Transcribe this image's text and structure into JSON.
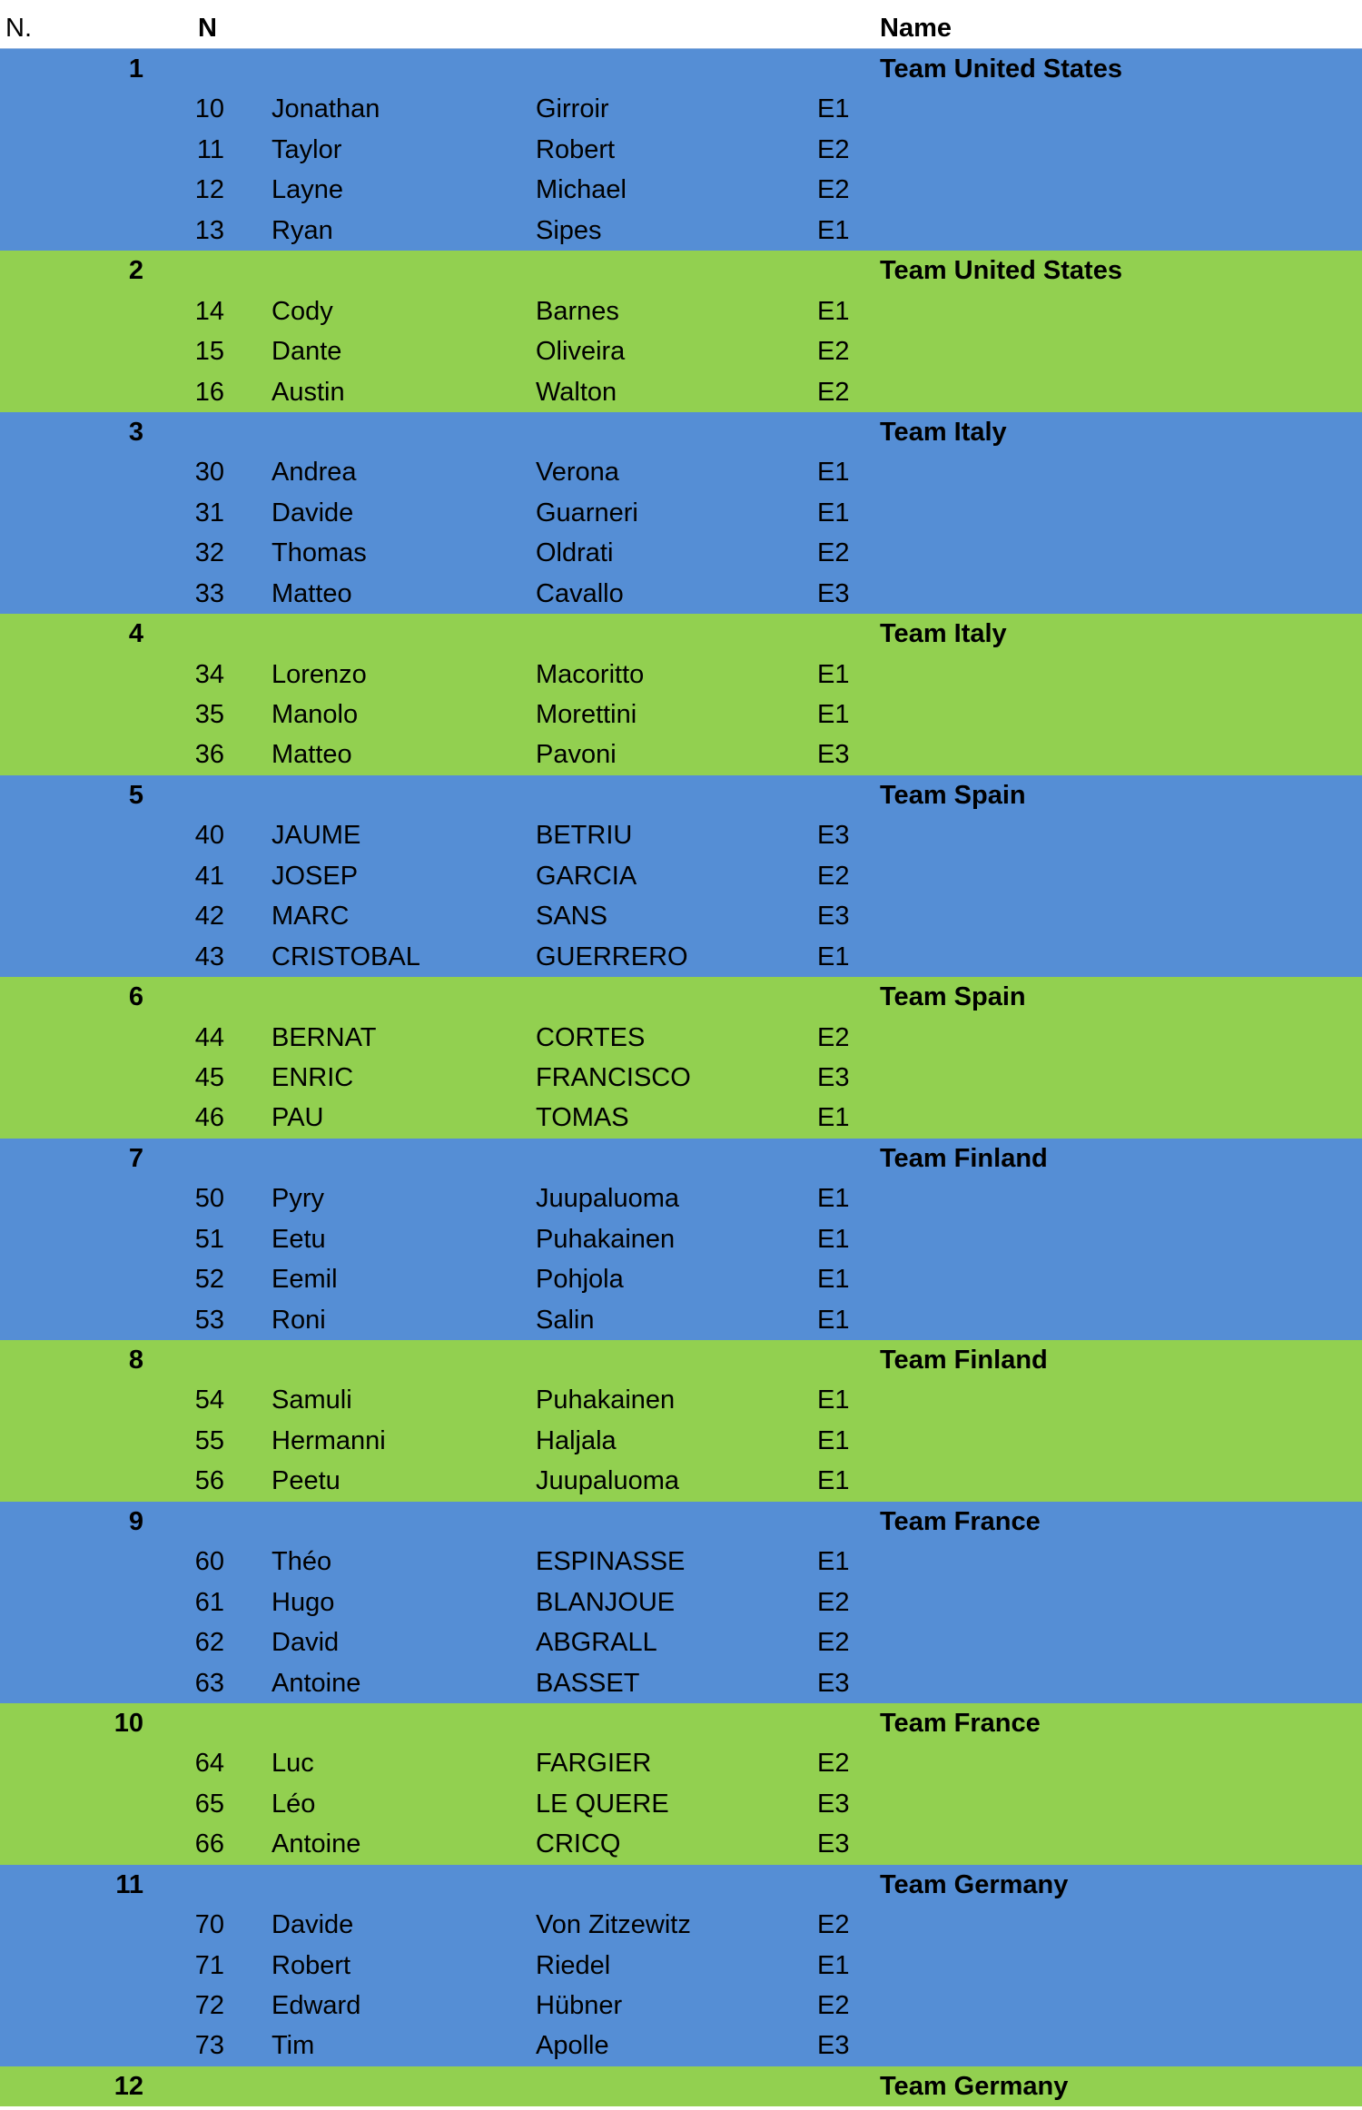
{
  "header": {
    "col_no": "N.",
    "col_n": "N",
    "col_name": "Name"
  },
  "colors": {
    "odd_group": "#558ED5",
    "even_group": "#92D050"
  },
  "groups": [
    {
      "no": "1",
      "name": "Team United States",
      "players": [
        {
          "n": "10",
          "first": "Jonathan",
          "last": "Girroir",
          "cat": "E1"
        },
        {
          "n": "11",
          "first": "Taylor",
          "last": "Robert",
          "cat": "E2"
        },
        {
          "n": "12",
          "first": "Layne",
          "last": "Michael",
          "cat": "E2"
        },
        {
          "n": "13",
          "first": "Ryan",
          "last": "Sipes",
          "cat": "E1"
        }
      ]
    },
    {
      "no": "2",
      "name": "Team United States",
      "players": [
        {
          "n": "14",
          "first": "Cody",
          "last": "Barnes",
          "cat": "E1"
        },
        {
          "n": "15",
          "first": "Dante",
          "last": "Oliveira",
          "cat": "E2"
        },
        {
          "n": "16",
          "first": "Austin",
          "last": "Walton",
          "cat": "E2"
        }
      ]
    },
    {
      "no": "3",
      "name": "Team Italy",
      "players": [
        {
          "n": "30",
          "first": "Andrea",
          "last": "Verona",
          "cat": "E1"
        },
        {
          "n": "31",
          "first": "Davide",
          "last": "Guarneri",
          "cat": "E1"
        },
        {
          "n": "32",
          "first": "Thomas",
          "last": "Oldrati",
          "cat": "E2"
        },
        {
          "n": "33",
          "first": "Matteo",
          "last": "Cavallo",
          "cat": "E3"
        }
      ]
    },
    {
      "no": "4",
      "name": "Team Italy",
      "players": [
        {
          "n": "34",
          "first": "Lorenzo",
          "last": "Macoritto",
          "cat": "E1"
        },
        {
          "n": "35",
          "first": "Manolo",
          "last": "Morettini",
          "cat": "E1"
        },
        {
          "n": "36",
          "first": "Matteo",
          "last": "Pavoni",
          "cat": "E3"
        }
      ]
    },
    {
      "no": "5",
      "name": "Team Spain",
      "players": [
        {
          "n": "40",
          "first": "JAUME",
          "last": "BETRIU",
          "cat": "E3"
        },
        {
          "n": "41",
          "first": "JOSEP",
          "last": "GARCIA",
          "cat": "E2"
        },
        {
          "n": "42",
          "first": "MARC",
          "last": "SANS",
          "cat": "E3"
        },
        {
          "n": "43",
          "first": "CRISTOBAL",
          "last": "GUERRERO",
          "cat": "E1"
        }
      ]
    },
    {
      "no": "6",
      "name": "Team Spain",
      "players": [
        {
          "n": "44",
          "first": "BERNAT",
          "last": "CORTES",
          "cat": "E2"
        },
        {
          "n": "45",
          "first": "ENRIC",
          "last": "FRANCISCO",
          "cat": "E3"
        },
        {
          "n": "46",
          "first": "PAU",
          "last": "TOMAS",
          "cat": "E1"
        }
      ]
    },
    {
      "no": "7",
      "name": "Team Finland",
      "players": [
        {
          "n": "50",
          "first": "Pyry",
          "last": "Juupaluoma",
          "cat": "E1"
        },
        {
          "n": "51",
          "first": "Eetu",
          "last": "Puhakainen",
          "cat": "E1"
        },
        {
          "n": "52",
          "first": "Eemil",
          "last": "Pohjola",
          "cat": "E1"
        },
        {
          "n": "53",
          "first": "Roni",
          "last": "Salin",
          "cat": "E1"
        }
      ]
    },
    {
      "no": "8",
      "name": "Team Finland",
      "players": [
        {
          "n": "54",
          "first": "Samuli",
          "last": "Puhakainen",
          "cat": "E1"
        },
        {
          "n": "55",
          "first": "Hermanni",
          "last": "Haljala",
          "cat": "E1"
        },
        {
          "n": "56",
          "first": "Peetu",
          "last": "Juupaluoma",
          "cat": "E1"
        }
      ]
    },
    {
      "no": "9",
      "name": "Team France",
      "players": [
        {
          "n": "60",
          "first": "Théo",
          "last": "ESPINASSE",
          "cat": "E1"
        },
        {
          "n": "61",
          "first": "Hugo",
          "last": "BLANJOUE",
          "cat": "E2"
        },
        {
          "n": "62",
          "first": "David",
          "last": "ABGRALL",
          "cat": "E2"
        },
        {
          "n": "63",
          "first": "Antoine",
          "last": "BASSET",
          "cat": "E3"
        }
      ]
    },
    {
      "no": "10",
      "name": "Team France",
      "players": [
        {
          "n": "64",
          "first": "Luc",
          "last": "FARGIER",
          "cat": "E2"
        },
        {
          "n": "65",
          "first": "Léo",
          "last": "LE QUERE",
          "cat": "E3"
        },
        {
          "n": "66",
          "first": "Antoine",
          "last": "CRICQ",
          "cat": "E3"
        }
      ]
    },
    {
      "no": "11",
      "name": "Team Germany",
      "players": [
        {
          "n": "70",
          "first": "Davide",
          "last": "Von Zitzewitz",
          "cat": "E2"
        },
        {
          "n": "71",
          "first": "Robert",
          "last": "Riedel",
          "cat": "E1"
        },
        {
          "n": "72",
          "first": "Edward",
          "last": "Hübner",
          "cat": "E2"
        },
        {
          "n": "73",
          "first": "Tim",
          "last": "Apolle",
          "cat": "E3"
        }
      ]
    },
    {
      "no": "12",
      "name": "Team Germany",
      "players": []
    }
  ]
}
